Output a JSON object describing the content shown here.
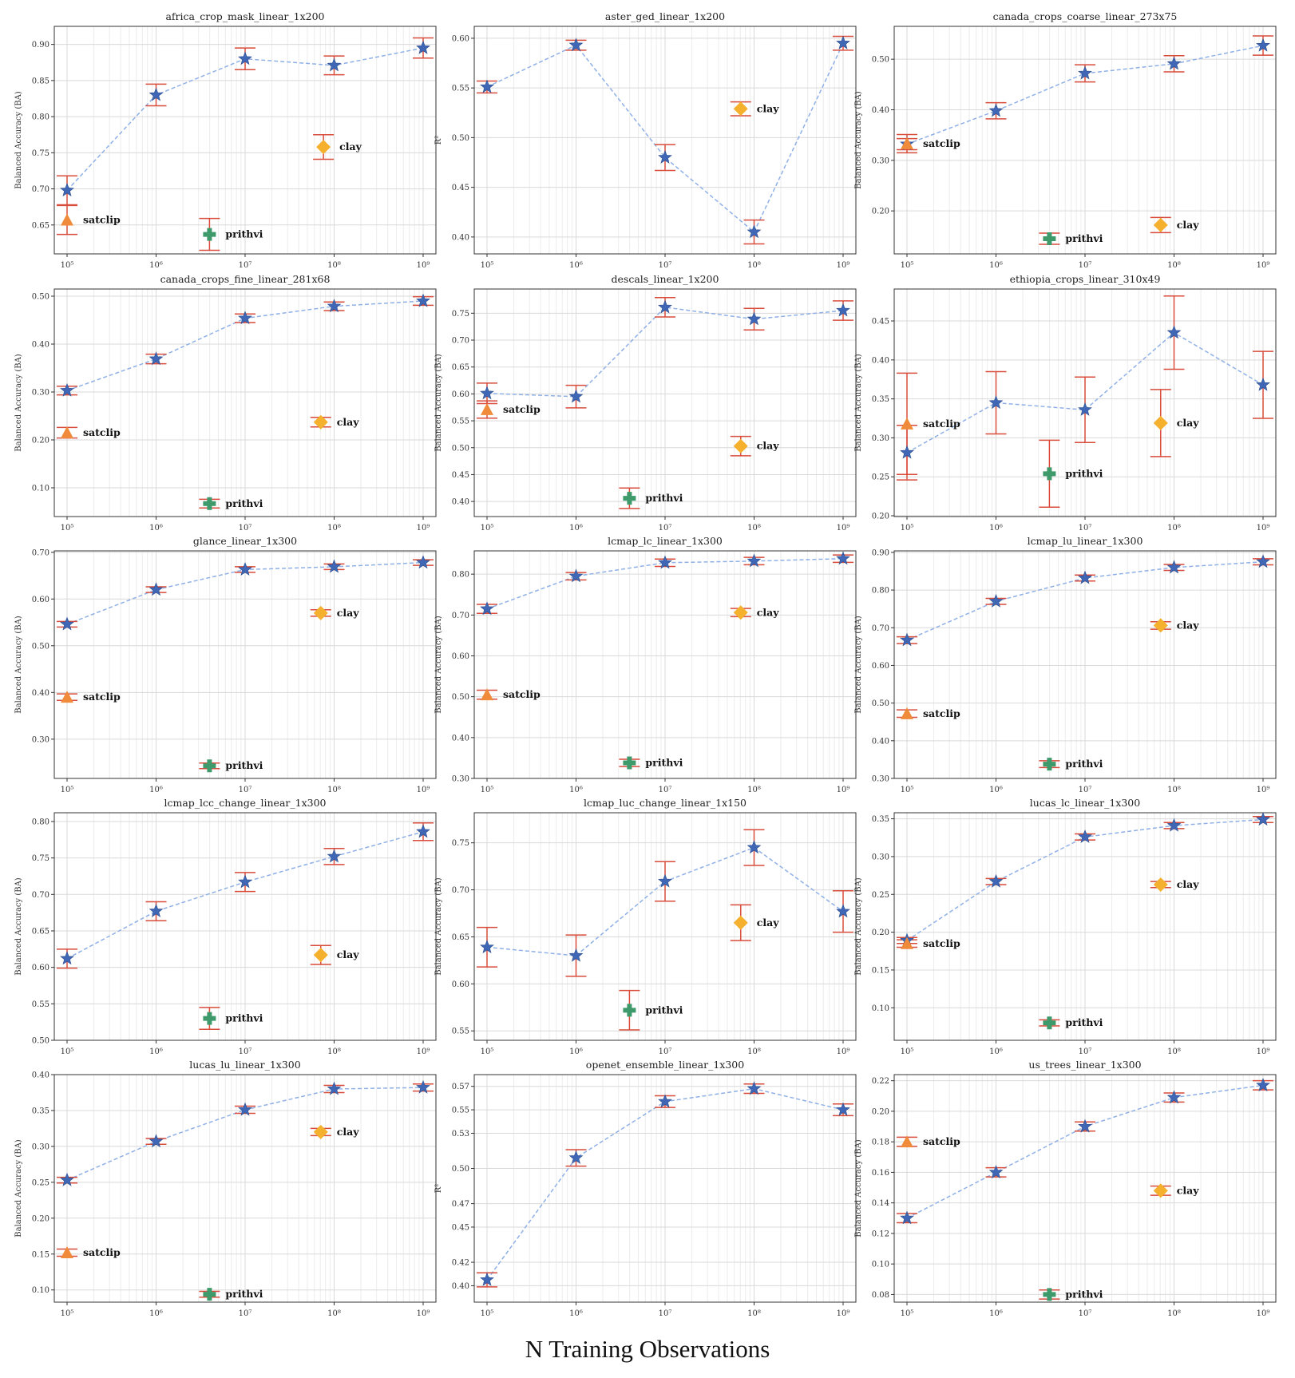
{
  "figure": {
    "x_axis_label": "N Training Observations",
    "x_ticks": [
      "10^5",
      "10^6",
      "10^7",
      "10^8",
      "10^9"
    ],
    "colors": {
      "line": "#8fb0e6",
      "star": "#3f67b5",
      "error": "#d94c3c",
      "satclip": "#ef8b3a",
      "clay": "#f5b02e",
      "prithvi": "#3f9a6b",
      "grid": "#d9d9d9"
    },
    "icons": {
      "main": "star-marker",
      "satclip": "triangle-marker",
      "clay": "diamond-marker",
      "prithvi": "plus-marker"
    }
  },
  "chart_data": [
    {
      "type": "scatter",
      "title": "africa_crop_mask_linear_1x200",
      "ylabel": "Balanced Accuracy (BA)",
      "ylim": [
        0.61,
        0.925
      ],
      "yticks": [
        "0.65",
        "0.70",
        "0.75",
        "0.80",
        "0.85",
        "0.90"
      ],
      "series": {
        "name": "main",
        "x": [
          5,
          6,
          7,
          8,
          9
        ],
        "y": [
          0.698,
          0.83,
          0.88,
          0.871,
          0.895
        ],
        "err": [
          0.02,
          0.015,
          0.015,
          0.013,
          0.014
        ]
      },
      "baselines": [
        {
          "name": "satclip",
          "x": 5,
          "y": 0.657,
          "err": 0.02
        },
        {
          "name": "clay",
          "x": 7.88,
          "y": 0.758,
          "err": 0.017
        },
        {
          "name": "prithvi",
          "x": 6.6,
          "y": 0.637,
          "err": 0.022
        }
      ]
    },
    {
      "type": "scatter",
      "title": "aster_ged_linear_1x200",
      "ylabel": "R^2",
      "ylim": [
        0.383,
        0.612
      ],
      "yticks": [
        "0.40",
        "0.45",
        "0.50",
        "0.55",
        "0.60"
      ],
      "series": {
        "name": "main",
        "x": [
          5,
          6,
          7,
          8,
          9
        ],
        "y": [
          0.551,
          0.593,
          0.48,
          0.405,
          0.595
        ],
        "err": [
          0.006,
          0.005,
          0.013,
          0.012,
          0.007
        ]
      },
      "baselines": [
        {
          "name": "clay",
          "x": 7.85,
          "y": 0.529,
          "err": 0.007
        }
      ]
    },
    {
      "type": "scatter",
      "title": "canada_crops_coarse_linear_273x75",
      "ylabel": "Balanced Accuracy (BA)",
      "ylim": [
        0.115,
        0.565
      ],
      "yticks": [
        "0.20",
        "0.30",
        "0.40",
        "0.50"
      ],
      "series": {
        "name": "main",
        "x": [
          5,
          6,
          7,
          8,
          9
        ],
        "y": [
          0.332,
          0.398,
          0.472,
          0.491,
          0.527
        ],
        "err": [
          0.011,
          0.016,
          0.017,
          0.016,
          0.019
        ]
      },
      "baselines": [
        {
          "name": "satclip",
          "x": 5,
          "y": 0.333,
          "err": 0.018
        },
        {
          "name": "clay",
          "x": 7.85,
          "y": 0.172,
          "err": 0.015
        },
        {
          "name": "prithvi",
          "x": 6.6,
          "y": 0.145,
          "err": 0.011
        }
      ]
    },
    {
      "type": "scatter",
      "title": "canada_crops_fine_linear_281x68",
      "ylabel": "Balanced Accuracy (BA)",
      "ylim": [
        0.04,
        0.515
      ],
      "yticks": [
        "0.10",
        "0.20",
        "0.30",
        "0.40",
        "0.50"
      ],
      "series": {
        "name": "main",
        "x": [
          5,
          6,
          7,
          8,
          9
        ],
        "y": [
          0.303,
          0.369,
          0.454,
          0.479,
          0.49
        ],
        "err": [
          0.009,
          0.01,
          0.009,
          0.009,
          0.009
        ]
      },
      "baselines": [
        {
          "name": "satclip",
          "x": 5,
          "y": 0.215,
          "err": 0.011
        },
        {
          "name": "clay",
          "x": 7.85,
          "y": 0.237,
          "err": 0.01
        },
        {
          "name": "prithvi",
          "x": 6.6,
          "y": 0.067,
          "err": 0.009
        }
      ]
    },
    {
      "type": "scatter",
      "title": "descals_linear_1x200",
      "ylabel": "Balanced Accuracy (BA)",
      "ylim": [
        0.372,
        0.795
      ],
      "yticks": [
        "0.40",
        "0.45",
        "0.50",
        "0.55",
        "0.60",
        "0.65",
        "0.70",
        "0.75"
      ],
      "series": {
        "name": "main",
        "x": [
          5,
          6,
          7,
          8,
          9
        ],
        "y": [
          0.601,
          0.595,
          0.761,
          0.739,
          0.755
        ],
        "err": [
          0.019,
          0.021,
          0.018,
          0.02,
          0.018
        ]
      },
      "baselines": [
        {
          "name": "satclip",
          "x": 5,
          "y": 0.571,
          "err": 0.016
        },
        {
          "name": "clay",
          "x": 7.85,
          "y": 0.503,
          "err": 0.018
        },
        {
          "name": "prithvi",
          "x": 6.6,
          "y": 0.406,
          "err": 0.019
        }
      ]
    },
    {
      "type": "scatter",
      "title": "ethiopia_crops_linear_310x49",
      "ylabel": "Balanced Accuracy (BA)",
      "ylim": [
        0.199,
        0.491
      ],
      "yticks": [
        "0.20",
        "0.25",
        "0.30",
        "0.35",
        "0.40",
        "0.45"
      ],
      "series": {
        "name": "main",
        "x": [
          5,
          6,
          7,
          8,
          9
        ],
        "y": [
          0.281,
          0.345,
          0.336,
          0.435,
          0.368
        ],
        "err": [
          0.035,
          0.04,
          0.042,
          0.047,
          0.043
        ]
      },
      "baselines": [
        {
          "name": "satclip",
          "x": 5,
          "y": 0.318,
          "err": 0.065
        },
        {
          "name": "clay",
          "x": 7.85,
          "y": 0.319,
          "err": 0.043
        },
        {
          "name": "prithvi",
          "x": 6.6,
          "y": 0.254,
          "err": 0.043
        }
      ]
    },
    {
      "type": "scatter",
      "title": "glance_linear_1x300",
      "ylabel": "Balanced Accuracy (BA)",
      "ylim": [
        0.216,
        0.703
      ],
      "yticks": [
        "0.30",
        "0.40",
        "0.50",
        "0.60",
        "0.70"
      ],
      "series": {
        "name": "main",
        "x": [
          5,
          6,
          7,
          8,
          9
        ],
        "y": [
          0.546,
          0.62,
          0.663,
          0.669,
          0.678
        ],
        "err": [
          0.006,
          0.006,
          0.006,
          0.006,
          0.006
        ]
      },
      "baselines": [
        {
          "name": "satclip",
          "x": 5,
          "y": 0.39,
          "err": 0.007
        },
        {
          "name": "clay",
          "x": 7.85,
          "y": 0.57,
          "err": 0.007
        },
        {
          "name": "prithvi",
          "x": 6.6,
          "y": 0.243,
          "err": 0.006
        }
      ]
    },
    {
      "type": "scatter",
      "title": "lcmap_lc_linear_1x300",
      "ylabel": "Balanced Accuracy (BA)",
      "ylim": [
        0.3,
        0.857
      ],
      "yticks": [
        "0.30",
        "0.40",
        "0.50",
        "0.60",
        "0.70",
        "0.80"
      ],
      "series": {
        "name": "main",
        "x": [
          5,
          6,
          7,
          8,
          9
        ],
        "y": [
          0.715,
          0.795,
          0.828,
          0.832,
          0.838
        ],
        "err": [
          0.011,
          0.009,
          0.009,
          0.009,
          0.009
        ]
      },
      "baselines": [
        {
          "name": "satclip",
          "x": 5,
          "y": 0.505,
          "err": 0.011
        },
        {
          "name": "clay",
          "x": 7.85,
          "y": 0.706,
          "err": 0.01
        },
        {
          "name": "prithvi",
          "x": 6.6,
          "y": 0.338,
          "err": 0.009
        }
      ]
    },
    {
      "type": "scatter",
      "title": "lcmap_lu_linear_1x300",
      "ylabel": "Balanced Accuracy (BA)",
      "ylim": [
        0.3,
        0.904
      ],
      "yticks": [
        "0.30",
        "0.40",
        "0.50",
        "0.60",
        "0.70",
        "0.80",
        "0.90"
      ],
      "series": {
        "name": "main",
        "x": [
          5,
          6,
          7,
          8,
          9
        ],
        "y": [
          0.667,
          0.77,
          0.832,
          0.86,
          0.875
        ],
        "err": [
          0.009,
          0.008,
          0.008,
          0.008,
          0.008
        ]
      },
      "baselines": [
        {
          "name": "satclip",
          "x": 5,
          "y": 0.472,
          "err": 0.01
        },
        {
          "name": "clay",
          "x": 7.85,
          "y": 0.706,
          "err": 0.01
        },
        {
          "name": "prithvi",
          "x": 6.6,
          "y": 0.338,
          "err": 0.009
        }
      ]
    },
    {
      "type": "scatter",
      "title": "lcmap_lcc_change_linear_1x300",
      "ylabel": "Balanced Accuracy (BA)",
      "ylim": [
        0.5,
        0.812
      ],
      "yticks": [
        "0.50",
        "0.55",
        "0.60",
        "0.65",
        "0.70",
        "0.75",
        "0.80"
      ],
      "series": {
        "name": "main",
        "x": [
          5,
          6,
          7,
          8,
          9
        ],
        "y": [
          0.612,
          0.677,
          0.717,
          0.752,
          0.786
        ],
        "err": [
          0.013,
          0.013,
          0.013,
          0.011,
          0.012
        ]
      },
      "baselines": [
        {
          "name": "clay",
          "x": 7.85,
          "y": 0.617,
          "err": 0.013
        },
        {
          "name": "prithvi",
          "x": 6.6,
          "y": 0.53,
          "err": 0.015
        }
      ]
    },
    {
      "type": "scatter",
      "title": "lcmap_luc_change_linear_1x150",
      "ylabel": "Balanced Accuracy (BA)",
      "ylim": [
        0.54,
        0.782
      ],
      "yticks": [
        "0.55",
        "0.60",
        "0.65",
        "0.70",
        "0.75"
      ],
      "series": {
        "name": "main",
        "x": [
          5,
          6,
          7,
          8,
          9
        ],
        "y": [
          0.639,
          0.63,
          0.709,
          0.745,
          0.677
        ],
        "err": [
          0.021,
          0.022,
          0.021,
          0.019,
          0.022
        ]
      },
      "baselines": [
        {
          "name": "clay",
          "x": 7.85,
          "y": 0.665,
          "err": 0.019
        },
        {
          "name": "prithvi",
          "x": 6.6,
          "y": 0.572,
          "err": 0.021
        }
      ]
    },
    {
      "type": "scatter",
      "title": "lucas_lc_linear_1x300",
      "ylabel": "Balanced Accuracy (BA)",
      "ylim": [
        0.057,
        0.358
      ],
      "yticks": [
        "0.10",
        "0.15",
        "0.20",
        "0.25",
        "0.30",
        "0.35"
      ],
      "series": {
        "name": "main",
        "x": [
          5,
          6,
          7,
          8,
          9
        ],
        "y": [
          0.189,
          0.267,
          0.326,
          0.341,
          0.349
        ],
        "err": [
          0.004,
          0.004,
          0.004,
          0.004,
          0.004
        ]
      },
      "baselines": [
        {
          "name": "satclip",
          "x": 5,
          "y": 0.185,
          "err": 0.005
        },
        {
          "name": "clay",
          "x": 7.85,
          "y": 0.263,
          "err": 0.004
        },
        {
          "name": "prithvi",
          "x": 6.6,
          "y": 0.08,
          "err": 0.004
        }
      ]
    },
    {
      "type": "scatter",
      "title": "lucas_lu_linear_1x300",
      "ylabel": "Balanced Accuracy (BA)",
      "ylim": [
        0.083,
        0.4
      ],
      "yticks": [
        "0.10",
        "0.15",
        "0.20",
        "0.25",
        "0.30",
        "0.35",
        "0.40"
      ],
      "series": {
        "name": "main",
        "x": [
          5,
          6,
          7,
          8,
          9
        ],
        "y": [
          0.253,
          0.307,
          0.351,
          0.38,
          0.382
        ],
        "err": [
          0.004,
          0.004,
          0.005,
          0.005,
          0.005
        ]
      },
      "baselines": [
        {
          "name": "satclip",
          "x": 5,
          "y": 0.152,
          "err": 0.005
        },
        {
          "name": "clay",
          "x": 7.85,
          "y": 0.32,
          "err": 0.005
        },
        {
          "name": "prithvi",
          "x": 6.6,
          "y": 0.094,
          "err": 0.004
        }
      ]
    },
    {
      "type": "scatter",
      "title": "openet_ensemble_linear_1x300",
      "ylabel": "R^2",
      "ylim": [
        0.386,
        0.58
      ],
      "yticks": [
        "0.40",
        "0.42",
        "0.45",
        "0.47",
        "0.50",
        "0.53",
        "0.55",
        "0.57"
      ],
      "series": {
        "name": "main",
        "x": [
          5,
          6,
          7,
          8,
          9
        ],
        "y": [
          0.405,
          0.509,
          0.557,
          0.568,
          0.55
        ],
        "err": [
          0.006,
          0.007,
          0.005,
          0.004,
          0.005
        ]
      },
      "baselines": []
    },
    {
      "type": "scatter",
      "title": "us_trees_linear_1x300",
      "ylabel": "Balanced Accuracy (BA)",
      "ylim": [
        0.075,
        0.224
      ],
      "yticks": [
        "0.08",
        "0.10",
        "0.12",
        "0.14",
        "0.16",
        "0.18",
        "0.20",
        "0.22"
      ],
      "series": {
        "name": "main",
        "x": [
          5,
          6,
          7,
          8,
          9
        ],
        "y": [
          0.13,
          0.16,
          0.19,
          0.209,
          0.217
        ],
        "err": [
          0.003,
          0.003,
          0.003,
          0.003,
          0.003
        ]
      },
      "baselines": [
        {
          "name": "satclip",
          "x": 5,
          "y": 0.18,
          "err": 0.003
        },
        {
          "name": "clay",
          "x": 7.85,
          "y": 0.148,
          "err": 0.003
        },
        {
          "name": "prithvi",
          "x": 6.6,
          "y": 0.08,
          "err": 0.003
        }
      ]
    }
  ]
}
